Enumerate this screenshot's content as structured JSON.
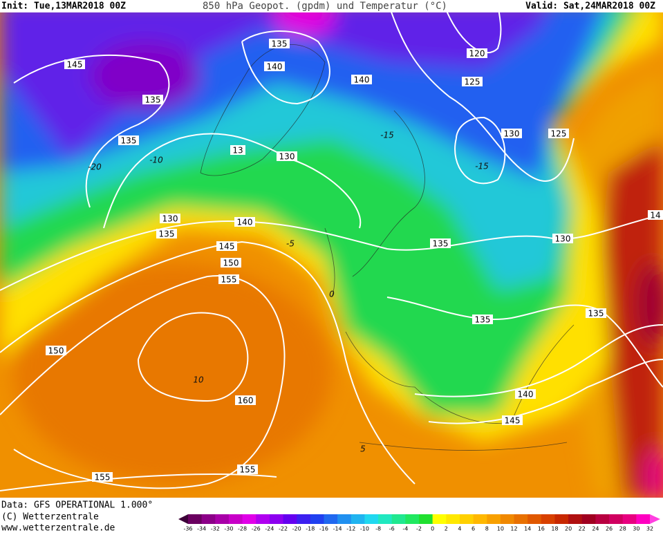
{
  "header": {
    "init": "Init: Tue,13MAR2018 00Z",
    "title": "850 hPa Geopot. (gpdm) und Temperatur (°C)",
    "valid": "Valid: Sat,24MAR2018 00Z"
  },
  "footer": {
    "lines": [
      "Data: GFS OPERATIONAL 1.000°",
      "(C) Wetterzentrale",
      "www.wetterzentrale.de"
    ]
  },
  "contour_labels": [
    "145",
    "135",
    "135",
    "135",
    "140",
    "140",
    "120",
    "125",
    "130",
    "125",
    "130",
    "13",
    "130",
    "135",
    "140",
    "145",
    "150",
    "155",
    "135",
    "130",
    "135",
    "135",
    "150",
    "160",
    "140",
    "145",
    "155",
    "155",
    "14"
  ],
  "isotherm_labels": [
    -15,
    -15,
    -10,
    -20,
    -5,
    0,
    10,
    5
  ],
  "colorbar": {
    "labels": [
      -36,
      -34,
      -32,
      -30,
      -28,
      -26,
      -24,
      -22,
      -20,
      -18,
      -16,
      -14,
      -12,
      -10,
      -8,
      -6,
      -4,
      -2,
      0,
      2,
      4,
      6,
      8,
      10,
      12,
      14,
      16,
      18,
      20,
      22,
      24,
      26,
      28,
      30,
      32
    ],
    "colors": [
      "#3c0038",
      "#6a0060",
      "#8c0088",
      "#a800a8",
      "#c800c8",
      "#e000e8",
      "#b000f0",
      "#8c00f0",
      "#6400f0",
      "#3c20f0",
      "#2040f0",
      "#2068f0",
      "#2090f0",
      "#20b4f0",
      "#20d8f0",
      "#20e8c0",
      "#20e890",
      "#20e860",
      "#20e030",
      "#ffff00",
      "#ffe800",
      "#ffd000",
      "#ffb800",
      "#f8a000",
      "#f08800",
      "#e87000",
      "#e05800",
      "#d84000",
      "#c82800",
      "#b01010",
      "#a00020",
      "#b80040",
      "#d00060",
      "#e80080",
      "#ff00c0",
      "#ff40e0"
    ]
  }
}
